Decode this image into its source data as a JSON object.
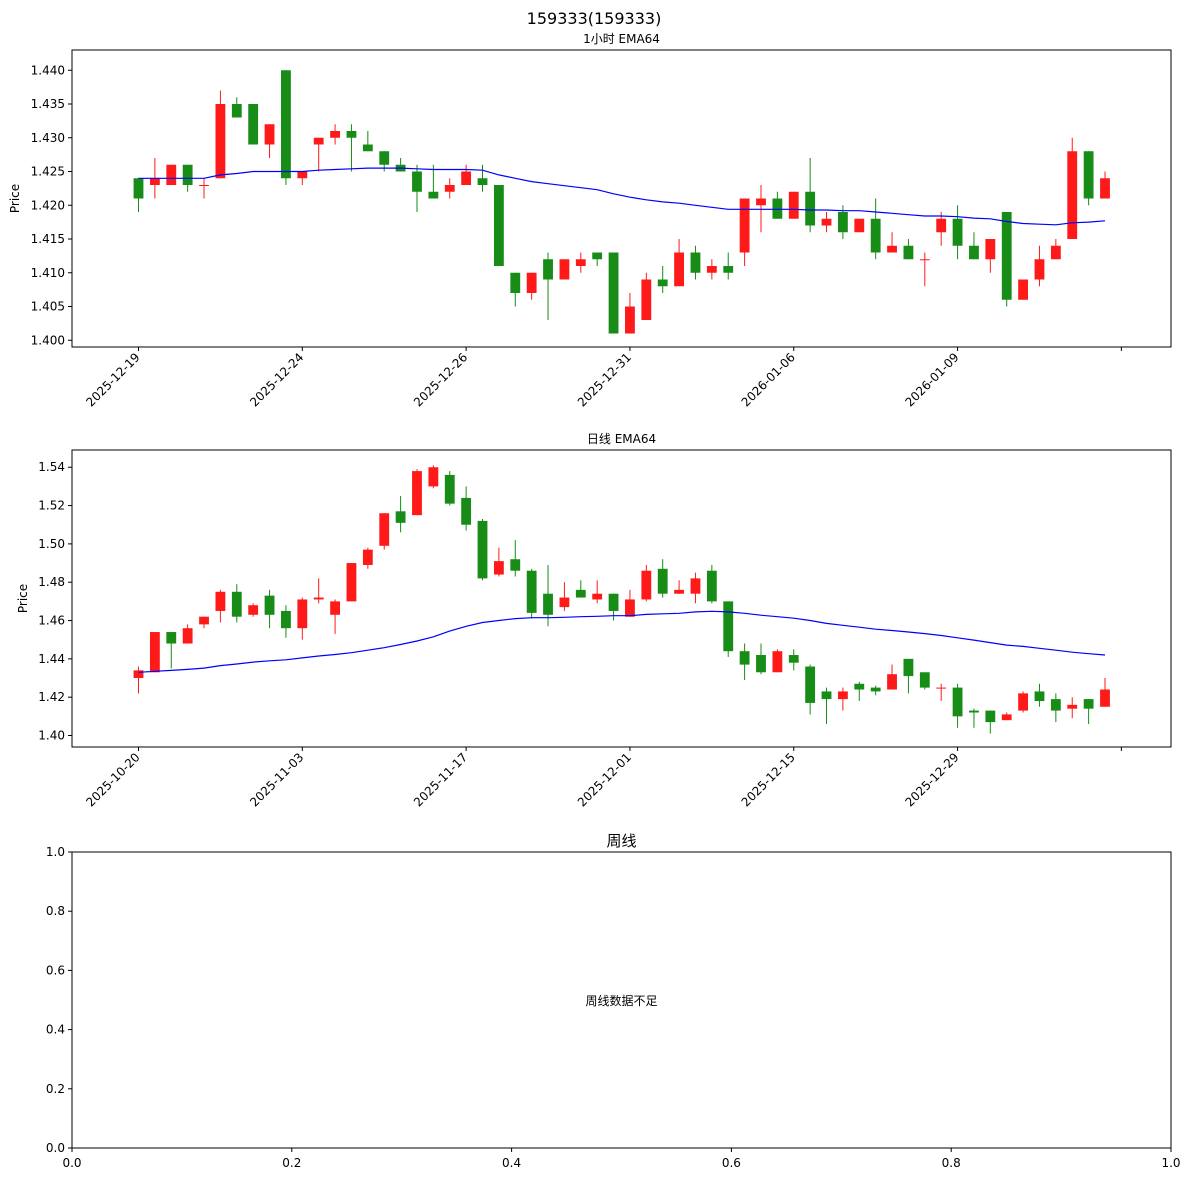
{
  "figure": {
    "suptitle": "159333(159333)"
  },
  "chart_data": [
    {
      "type": "candlestick",
      "title": "1小时 EMA64",
      "ylabel": "Price",
      "ylim": [
        1.399,
        1.443
      ],
      "yticks": [
        "1.400",
        "1.405",
        "1.410",
        "1.415",
        "1.420",
        "1.425",
        "1.430",
        "1.435",
        "1.440"
      ],
      "xticks": [
        {
          "index": 0,
          "label": "2025-12-19"
        },
        {
          "index": 10,
          "label": "2025-12-24"
        },
        {
          "index": 20,
          "label": "2025-12-26"
        },
        {
          "index": 30,
          "label": "2025-12-31"
        },
        {
          "index": 40,
          "label": "2026-01-06"
        },
        {
          "index": 50,
          "label": "2026-01-09"
        },
        {
          "index": 60,
          "label": ""
        }
      ],
      "ohlc": [
        [
          1.424,
          1.424,
          1.419,
          1.421
        ],
        [
          1.423,
          1.427,
          1.421,
          1.424
        ],
        [
          1.423,
          1.426,
          1.423,
          1.426
        ],
        [
          1.426,
          1.426,
          1.422,
          1.423
        ],
        [
          1.423,
          1.424,
          1.421,
          1.423
        ],
        [
          1.424,
          1.437,
          1.424,
          1.435
        ],
        [
          1.435,
          1.436,
          1.433,
          1.433
        ],
        [
          1.435,
          1.435,
          1.429,
          1.429
        ],
        [
          1.429,
          1.432,
          1.427,
          1.432
        ],
        [
          1.44,
          1.44,
          1.423,
          1.424
        ],
        [
          1.424,
          1.425,
          1.423,
          1.425
        ],
        [
          1.429,
          1.43,
          1.425,
          1.43
        ],
        [
          1.43,
          1.432,
          1.429,
          1.431
        ],
        [
          1.431,
          1.432,
          1.425,
          1.43
        ],
        [
          1.429,
          1.431,
          1.428,
          1.428
        ],
        [
          1.428,
          1.428,
          1.425,
          1.426
        ],
        [
          1.426,
          1.427,
          1.425,
          1.425
        ],
        [
          1.425,
          1.426,
          1.419,
          1.422
        ],
        [
          1.422,
          1.426,
          1.421,
          1.421
        ],
        [
          1.422,
          1.424,
          1.421,
          1.423
        ],
        [
          1.423,
          1.426,
          1.423,
          1.425
        ],
        [
          1.424,
          1.426,
          1.422,
          1.423
        ],
        [
          1.423,
          1.423,
          1.411,
          1.411
        ],
        [
          1.41,
          1.41,
          1.405,
          1.407
        ],
        [
          1.407,
          1.41,
          1.406,
          1.41
        ],
        [
          1.412,
          1.413,
          1.403,
          1.409
        ],
        [
          1.409,
          1.412,
          1.409,
          1.412
        ],
        [
          1.411,
          1.413,
          1.41,
          1.412
        ],
        [
          1.413,
          1.413,
          1.411,
          1.412
        ],
        [
          1.413,
          1.413,
          1.401,
          1.401
        ],
        [
          1.401,
          1.407,
          1.401,
          1.405
        ],
        [
          1.403,
          1.41,
          1.403,
          1.409
        ],
        [
          1.409,
          1.411,
          1.407,
          1.408
        ],
        [
          1.408,
          1.415,
          1.408,
          1.413
        ],
        [
          1.413,
          1.414,
          1.409,
          1.41
        ],
        [
          1.41,
          1.412,
          1.409,
          1.411
        ],
        [
          1.411,
          1.413,
          1.409,
          1.41
        ],
        [
          1.413,
          1.421,
          1.411,
          1.421
        ],
        [
          1.42,
          1.423,
          1.416,
          1.421
        ],
        [
          1.421,
          1.422,
          1.418,
          1.418
        ],
        [
          1.418,
          1.422,
          1.418,
          1.422
        ],
        [
          1.422,
          1.427,
          1.416,
          1.417
        ],
        [
          1.417,
          1.419,
          1.416,
          1.418
        ],
        [
          1.419,
          1.42,
          1.415,
          1.416
        ],
        [
          1.416,
          1.418,
          1.416,
          1.418
        ],
        [
          1.418,
          1.421,
          1.412,
          1.413
        ],
        [
          1.413,
          1.416,
          1.413,
          1.414
        ],
        [
          1.414,
          1.415,
          1.412,
          1.412
        ],
        [
          1.412,
          1.413,
          1.408,
          1.412
        ],
        [
          1.416,
          1.419,
          1.414,
          1.418
        ],
        [
          1.418,
          1.42,
          1.412,
          1.414
        ],
        [
          1.414,
          1.416,
          1.412,
          1.412
        ],
        [
          1.412,
          1.415,
          1.41,
          1.415
        ],
        [
          1.419,
          1.419,
          1.405,
          1.406
        ],
        [
          1.406,
          1.409,
          1.406,
          1.409
        ],
        [
          1.409,
          1.414,
          1.408,
          1.412
        ],
        [
          1.412,
          1.415,
          1.412,
          1.414
        ],
        [
          1.415,
          1.43,
          1.415,
          1.428
        ],
        [
          1.428,
          1.428,
          1.42,
          1.421
        ],
        [
          1.421,
          1.425,
          1.421,
          1.424
        ]
      ],
      "ema": [
        1.424,
        1.424,
        1.424,
        1.424,
        1.424,
        1.4245,
        1.4247,
        1.425,
        1.425,
        1.425,
        1.425,
        1.4252,
        1.4253,
        1.4254,
        1.4255,
        1.4255,
        1.4255,
        1.4254,
        1.4253,
        1.4253,
        1.4253,
        1.4252,
        1.4245,
        1.424,
        1.4235,
        1.4232,
        1.4229,
        1.4226,
        1.4223,
        1.4217,
        1.4212,
        1.4208,
        1.4205,
        1.4203,
        1.42,
        1.4197,
        1.4194,
        1.4194,
        1.4194,
        1.4194,
        1.4194,
        1.4193,
        1.4193,
        1.4192,
        1.4192,
        1.419,
        1.4188,
        1.4186,
        1.4184,
        1.4184,
        1.4183,
        1.4181,
        1.418,
        1.4176,
        1.4173,
        1.4172,
        1.4171,
        1.4174,
        1.4175,
        1.4177
      ]
    },
    {
      "type": "candlestick",
      "title": "日线 EMA64",
      "ylabel": "Price",
      "ylim": [
        1.394,
        1.549
      ],
      "yticks": [
        "1.40",
        "1.42",
        "1.44",
        "1.46",
        "1.48",
        "1.50",
        "1.52",
        "1.54"
      ],
      "xticks": [
        {
          "index": 0,
          "label": "2025-10-20"
        },
        {
          "index": 10,
          "label": "2025-11-03"
        },
        {
          "index": 20,
          "label": "2025-11-17"
        },
        {
          "index": 30,
          "label": "2025-12-01"
        },
        {
          "index": 40,
          "label": "2025-12-15"
        },
        {
          "index": 50,
          "label": "2025-12-29"
        },
        {
          "index": 60,
          "label": ""
        }
      ],
      "ohlc": [
        [
          1.43,
          1.436,
          1.422,
          1.434
        ],
        [
          1.433,
          1.454,
          1.433,
          1.454
        ],
        [
          1.454,
          1.454,
          1.435,
          1.448
        ],
        [
          1.448,
          1.458,
          1.448,
          1.456
        ],
        [
          1.458,
          1.462,
          1.456,
          1.462
        ],
        [
          1.465,
          1.476,
          1.459,
          1.475
        ],
        [
          1.475,
          1.479,
          1.459,
          1.462
        ],
        [
          1.463,
          1.469,
          1.462,
          1.468
        ],
        [
          1.473,
          1.476,
          1.456,
          1.463
        ],
        [
          1.465,
          1.468,
          1.451,
          1.456
        ],
        [
          1.456,
          1.472,
          1.45,
          1.471
        ],
        [
          1.471,
          1.482,
          1.469,
          1.472
        ],
        [
          1.463,
          1.471,
          1.453,
          1.47
        ],
        [
          1.47,
          1.49,
          1.47,
          1.49
        ],
        [
          1.489,
          1.498,
          1.487,
          1.497
        ],
        [
          1.499,
          1.516,
          1.497,
          1.516
        ],
        [
          1.517,
          1.525,
          1.506,
          1.511
        ],
        [
          1.515,
          1.539,
          1.515,
          1.538
        ],
        [
          1.53,
          1.541,
          1.529,
          1.54
        ],
        [
          1.536,
          1.538,
          1.52,
          1.521
        ],
        [
          1.524,
          1.53,
          1.507,
          1.51
        ],
        [
          1.512,
          1.513,
          1.481,
          1.482
        ],
        [
          1.484,
          1.498,
          1.483,
          1.491
        ],
        [
          1.492,
          1.502,
          1.483,
          1.486
        ],
        [
          1.486,
          1.487,
          1.461,
          1.464
        ],
        [
          1.474,
          1.489,
          1.457,
          1.463
        ],
        [
          1.467,
          1.48,
          1.465,
          1.472
        ],
        [
          1.476,
          1.481,
          1.472,
          1.472
        ],
        [
          1.471,
          1.481,
          1.469,
          1.474
        ],
        [
          1.474,
          1.474,
          1.46,
          1.465
        ],
        [
          1.462,
          1.476,
          1.462,
          1.471
        ],
        [
          1.471,
          1.489,
          1.47,
          1.486
        ],
        [
          1.487,
          1.492,
          1.472,
          1.474
        ],
        [
          1.474,
          1.481,
          1.474,
          1.476
        ],
        [
          1.474,
          1.485,
          1.469,
          1.482
        ],
        [
          1.486,
          1.489,
          1.469,
          1.47
        ],
        [
          1.47,
          1.47,
          1.441,
          1.444
        ],
        [
          1.444,
          1.448,
          1.429,
          1.437
        ],
        [
          1.442,
          1.448,
          1.432,
          1.433
        ],
        [
          1.433,
          1.445,
          1.433,
          1.444
        ],
        [
          1.442,
          1.445,
          1.434,
          1.438
        ],
        [
          1.436,
          1.437,
          1.411,
          1.417
        ],
        [
          1.423,
          1.425,
          1.406,
          1.419
        ],
        [
          1.419,
          1.425,
          1.413,
          1.423
        ],
        [
          1.427,
          1.428,
          1.418,
          1.424
        ],
        [
          1.425,
          1.426,
          1.421,
          1.423
        ],
        [
          1.424,
          1.437,
          1.424,
          1.432
        ],
        [
          1.44,
          1.44,
          1.422,
          1.431
        ],
        [
          1.433,
          1.433,
          1.424,
          1.425
        ],
        [
          1.425,
          1.427,
          1.418,
          1.425
        ],
        [
          1.425,
          1.427,
          1.404,
          1.41
        ],
        [
          1.413,
          1.414,
          1.404,
          1.412
        ],
        [
          1.413,
          1.413,
          1.401,
          1.407
        ],
        [
          1.408,
          1.412,
          1.408,
          1.411
        ],
        [
          1.413,
          1.423,
          1.412,
          1.422
        ],
        [
          1.423,
          1.427,
          1.415,
          1.418
        ],
        [
          1.419,
          1.422,
          1.407,
          1.413
        ],
        [
          1.414,
          1.42,
          1.409,
          1.416
        ],
        [
          1.419,
          1.419,
          1.406,
          1.414
        ],
        [
          1.415,
          1.43,
          1.415,
          1.424
        ]
      ],
      "ema": [
        1.433,
        1.4335,
        1.434,
        1.4345,
        1.4352,
        1.4365,
        1.4373,
        1.4383,
        1.439,
        1.4395,
        1.4405,
        1.4415,
        1.4423,
        1.4432,
        1.4445,
        1.4458,
        1.4475,
        1.4493,
        1.4515,
        1.4545,
        1.457,
        1.459,
        1.46,
        1.461,
        1.4615,
        1.4615,
        1.4617,
        1.462,
        1.4622,
        1.4625,
        1.4625,
        1.4632,
        1.4635,
        1.4638,
        1.4645,
        1.4648,
        1.4645,
        1.4638,
        1.4628,
        1.462,
        1.4612,
        1.46,
        1.4585,
        1.4575,
        1.4565,
        1.4555,
        1.4548,
        1.454,
        1.4532,
        1.4522,
        1.451,
        1.4498,
        1.4485,
        1.4472,
        1.4465,
        1.4455,
        1.4445,
        1.4435,
        1.4427,
        1.442
      ]
    },
    {
      "type": "empty",
      "title": "周线",
      "message": "周线数据不足",
      "xlim": [
        0,
        1
      ],
      "ylim": [
        0,
        1
      ],
      "xticks": [
        "0.0",
        "0.2",
        "0.4",
        "0.6",
        "0.8",
        "1.0"
      ],
      "yticks": [
        "0.0",
        "0.2",
        "0.4",
        "0.6",
        "0.8",
        "1.0"
      ]
    }
  ]
}
